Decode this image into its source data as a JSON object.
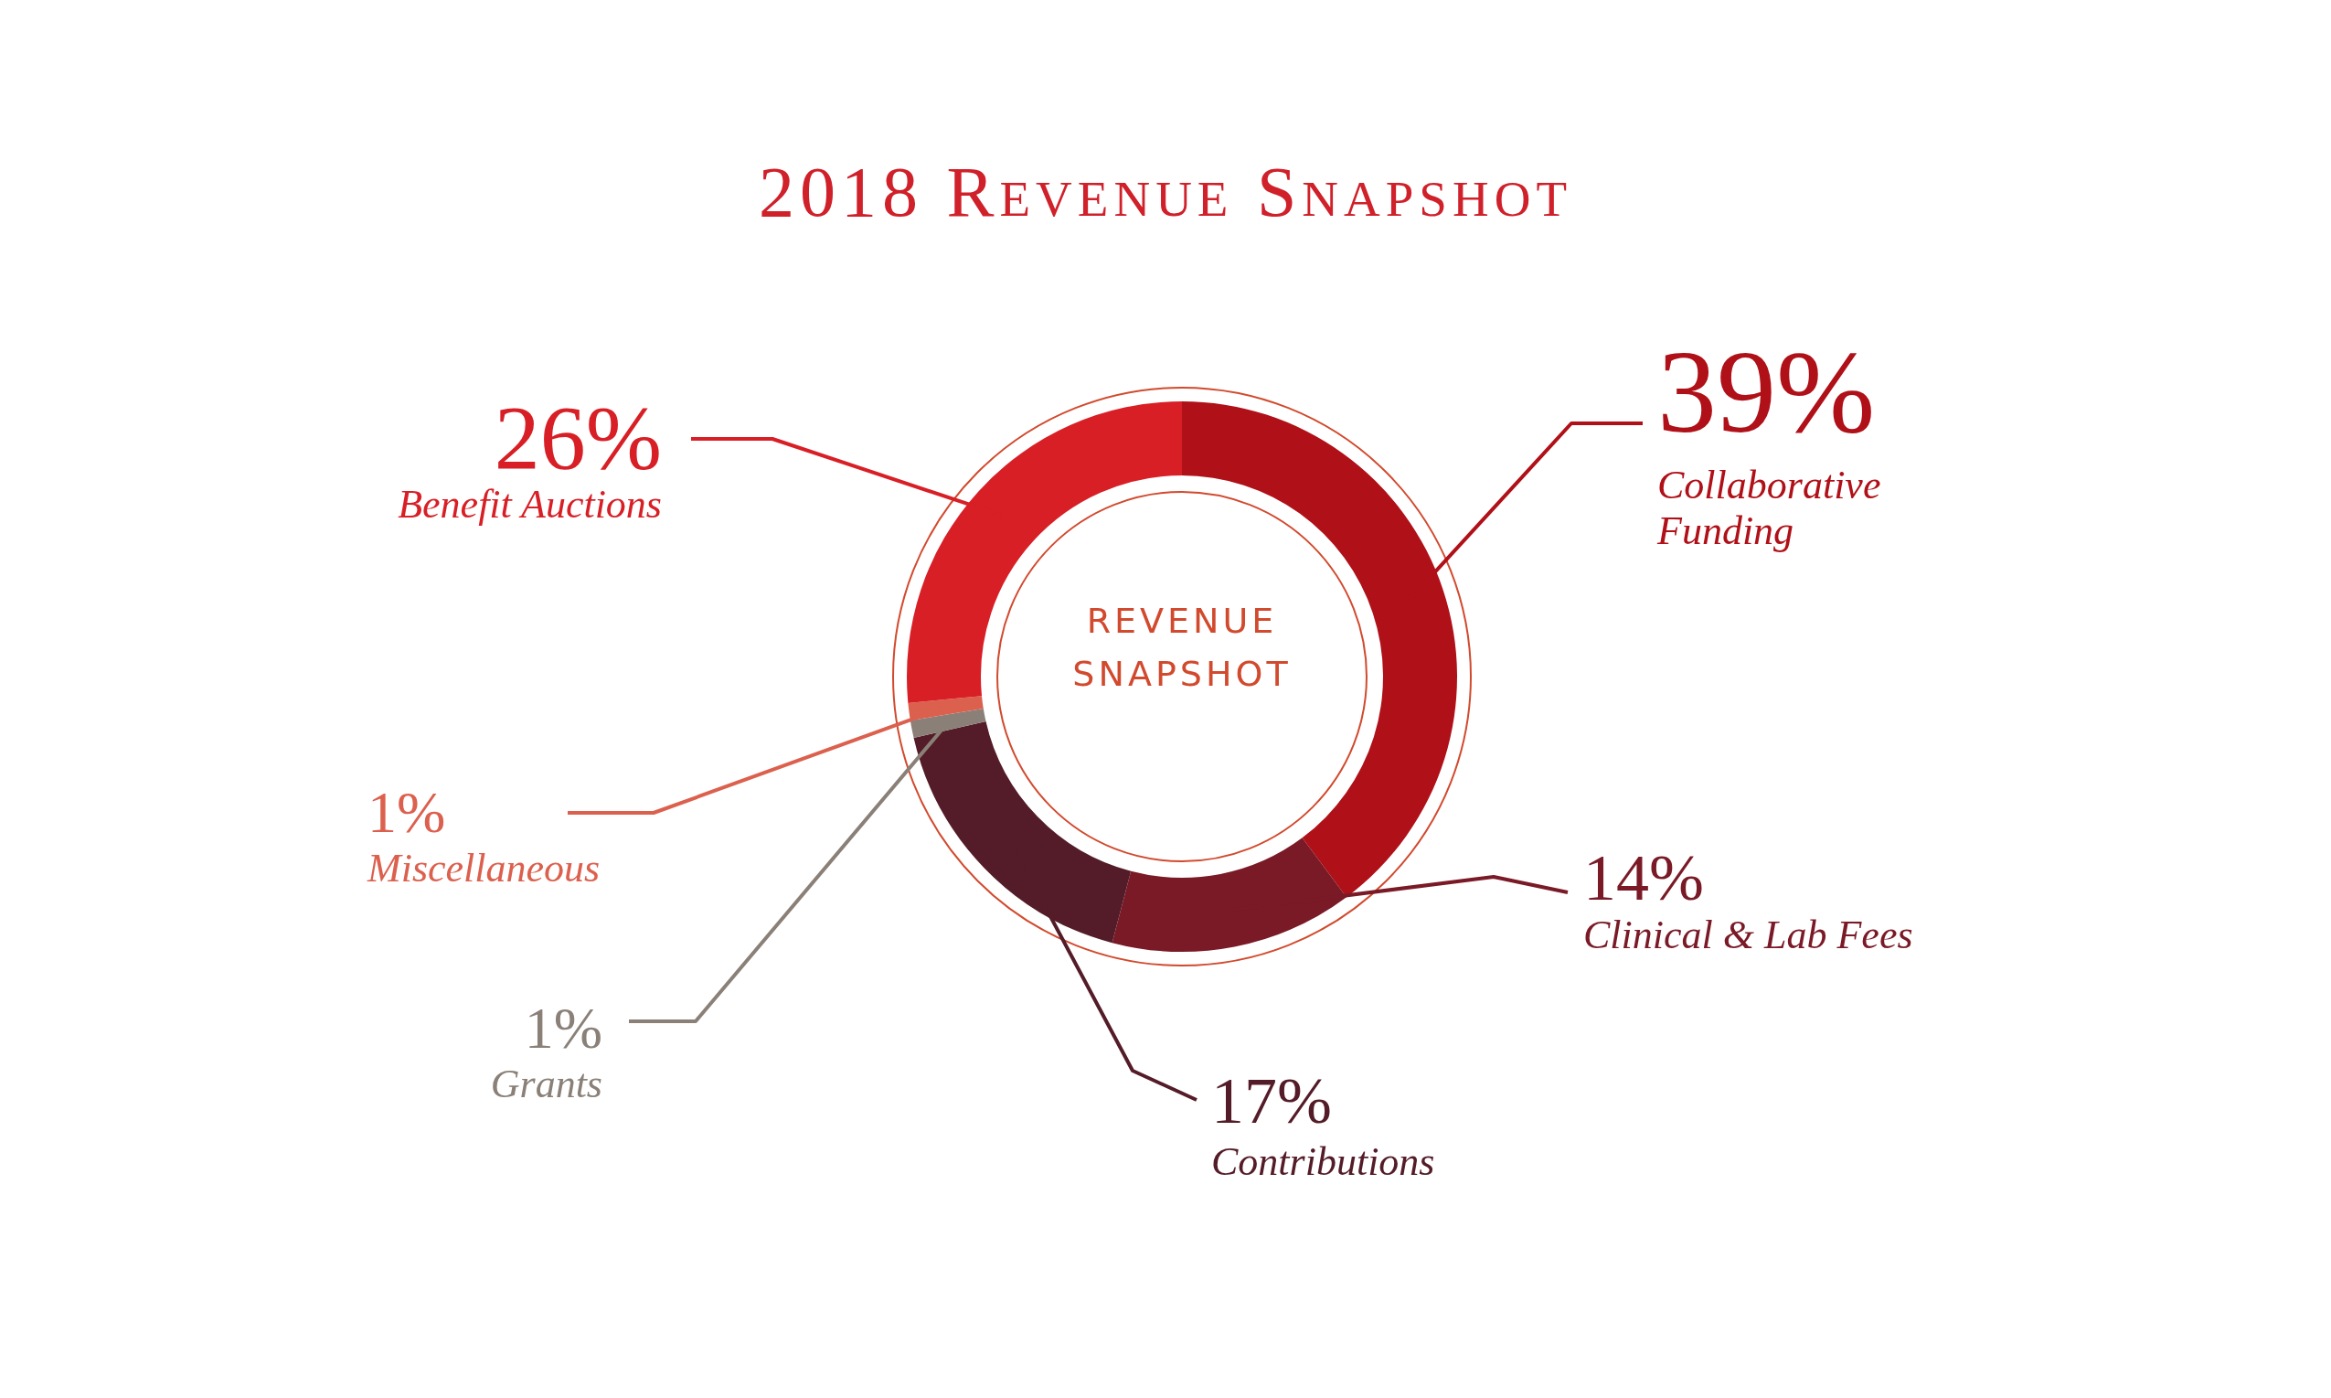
{
  "chart_data": {
    "type": "donut",
    "title": "2018 Revenue Snapshot",
    "categories": [
      "Collaborative Funding",
      "Clinical & Lab Fees",
      "Contributions",
      "Grants",
      "Miscellaneous",
      "Benefit Auctions"
    ],
    "values": [
      39,
      14,
      17,
      1,
      1,
      26
    ],
    "value_labels": [
      "39%",
      "14%",
      "17%",
      "1%",
      "1%",
      "26%"
    ],
    "colors": [
      "#b01018",
      "#7a1a26",
      "#541c28",
      "#8a8078",
      "#dc604e",
      "#d81f26"
    ],
    "annotations": [
      "REVENUE SNAPSHOT"
    ]
  }
}
